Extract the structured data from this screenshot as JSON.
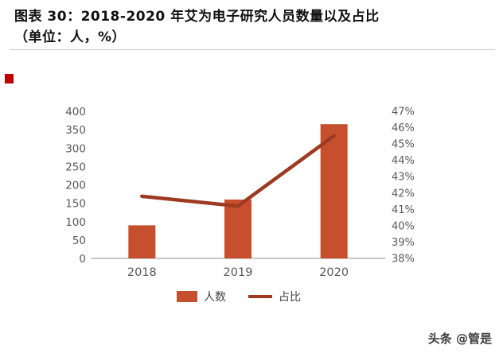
{
  "header": {
    "title_line1": "图表 30：2018-2020 年艾为电子研究人员数量以及占比",
    "title_line2": "（单位：人，%）"
  },
  "colors": {
    "bar": "#c6502e",
    "line": "#9e3a21",
    "axis": "#a6a6a6",
    "tick_text": "#595959",
    "accent": "#c00000"
  },
  "chart_data": {
    "type": "bar",
    "title": "图表 30：2018-2020 年艾为电子研究人员数量以及占比（单位：人，%）",
    "categories": [
      "2018",
      "2019",
      "2020"
    ],
    "series": [
      {
        "name": "人数",
        "kind": "bar",
        "axis": "left",
        "values": [
          90,
          160,
          365
        ]
      },
      {
        "name": "占比",
        "kind": "line",
        "axis": "right",
        "values": [
          41.8,
          41.2,
          45.5
        ]
      }
    ],
    "left_axis": {
      "min": 0,
      "max": 400,
      "ticks": [
        "0",
        "50",
        "100",
        "150",
        "200",
        "250",
        "300",
        "350",
        "400"
      ]
    },
    "right_axis": {
      "min": 38,
      "max": 47,
      "ticks": [
        "38%",
        "39%",
        "40%",
        "41%",
        "42%",
        "43%",
        "44%",
        "45%",
        "46%",
        "47%"
      ]
    },
    "grid": false,
    "legend_position": "bottom"
  },
  "footer": {
    "watermark": "头条 @管是"
  }
}
